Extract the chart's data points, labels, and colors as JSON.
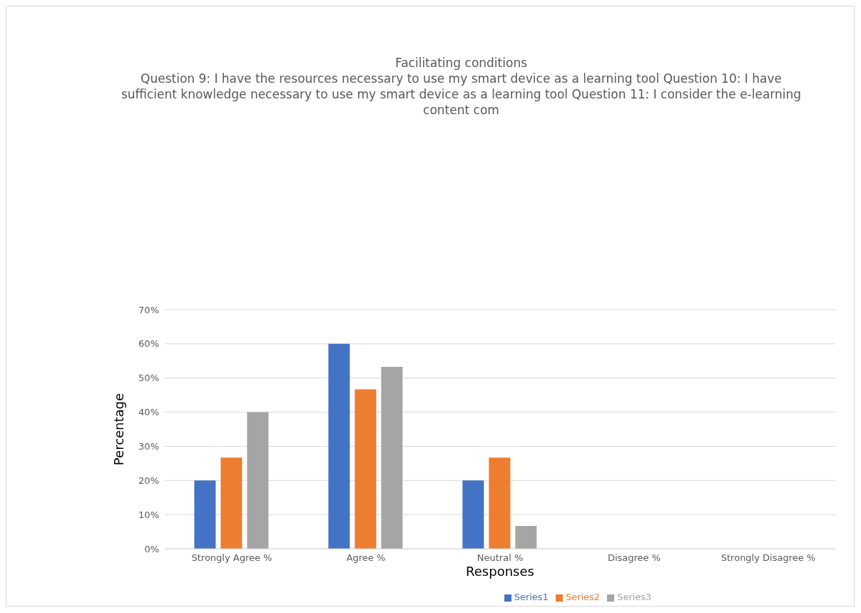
{
  "chart_data": {
    "type": "bar",
    "title": "Facilitating conditions",
    "subtitle": "Question 9: I have the resources necessary to use my smart device as a learning tool Question 10: I have sufficient knowledge necessary to use my smart device as a learning tool Question 11: I consider the e-learning content com",
    "xlabel": "Responses",
    "ylabel": "Percentage",
    "categories": [
      "Strongly Agree %",
      "Agree %",
      "Neutral %",
      "Disagree %",
      "Strongly Disagree %"
    ],
    "series": [
      {
        "name": "Series1",
        "color": "#4472c4",
        "values": [
          20,
          60,
          20,
          0,
          0
        ]
      },
      {
        "name": "Series2",
        "color": "#ed7d31",
        "values": [
          26.7,
          46.7,
          26.7,
          0,
          0
        ]
      },
      {
        "name": "Series3",
        "color": "#a5a5a5",
        "values": [
          40,
          53.3,
          6.7,
          0,
          0
        ]
      }
    ],
    "ylim": [
      0,
      70
    ],
    "yticks": [
      {
        "value": 0,
        "label": "0%"
      },
      {
        "value": 10,
        "label": "10%"
      },
      {
        "value": 20,
        "label": "20%"
      },
      {
        "value": 30,
        "label": "30%"
      },
      {
        "value": 40,
        "label": "40%"
      },
      {
        "value": 50,
        "label": "50%"
      },
      {
        "value": 60,
        "label": "60%"
      },
      {
        "value": 70,
        "label": "70%"
      }
    ],
    "grid": "y",
    "legend": "bottom"
  }
}
